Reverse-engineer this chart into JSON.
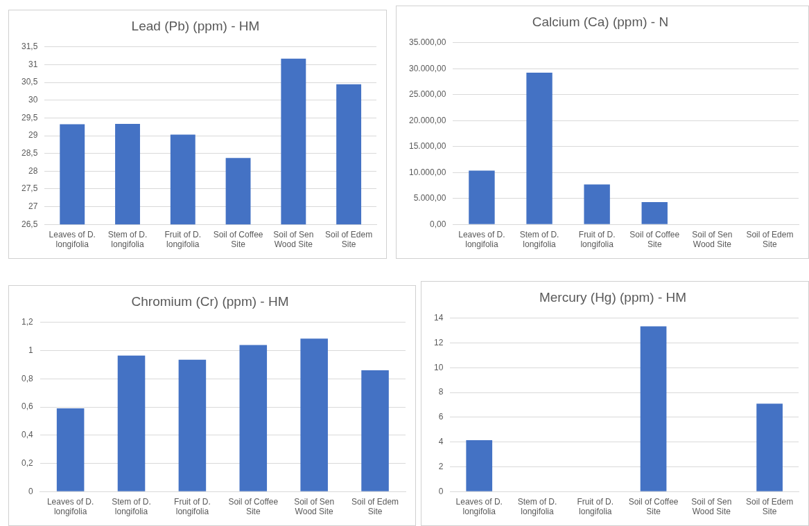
{
  "chart_data": [
    {
      "type": "bar",
      "title": "Lead (Pb) (ppm) - HM",
      "categories": [
        "Leaves of D. longifolia",
        "Stem of D. longifolia",
        "Fruit of D. longifolia",
        "Soil of Coffee Site",
        "Soil of Sen Wood Site",
        "Soil of Edem Site"
      ],
      "values": [
        29.32,
        29.33,
        29.03,
        28.37,
        31.17,
        30.45
      ],
      "color": "#4472c4",
      "ylim": [
        26.5,
        31.5
      ],
      "yticks": [
        {
          "value": 26.5,
          "label": "26,5"
        },
        27,
        {
          "value": 27.5,
          "label": "27,5"
        },
        28,
        {
          "value": 28.5,
          "label": "28,5"
        },
        29,
        {
          "value": 29.5,
          "label": "29,5"
        },
        30,
        {
          "value": 30.5,
          "label": "30,5"
        },
        31,
        {
          "value": 31.5,
          "label": "31,5"
        }
      ],
      "grid": "y"
    },
    {
      "type": "bar",
      "title": "Calcium (Ca) (ppm) - N",
      "categories": [
        "Leaves of D. longifolia",
        "Stem of D. longifolia",
        "Fruit of D. longifolia",
        "Soil of Coffee Site",
        "Soil of Sen Wood Site",
        "Soil of Edem Site"
      ],
      "values": [
        10350,
        29250,
        7700,
        4300,
        0,
        0
      ],
      "color": "#4472c4",
      "ylim": [
        0,
        35000
      ],
      "yticks": [
        {
          "value": 0,
          "label": "0,00"
        },
        {
          "value": 5000,
          "label": "5.000,00"
        },
        {
          "value": 10000,
          "label": "10.000,00"
        },
        {
          "value": 15000,
          "label": "15.000,00"
        },
        {
          "value": 20000,
          "label": "20.000,00"
        },
        {
          "value": 25000,
          "label": "25.000,00"
        },
        {
          "value": 30000,
          "label": "30.000,00"
        },
        {
          "value": 35000,
          "label": "35.000,00"
        }
      ],
      "grid": "y"
    },
    {
      "type": "bar",
      "title": "Chromium (Cr) (ppm) - HM",
      "categories": [
        "Leaves of D. longifolia",
        "Stem of D. longifolia",
        "Fruit of D. longifolia",
        "Soil of Coffee Site",
        "Soil of Sen Wood Site",
        "Soil of Edem Site"
      ],
      "values": [
        0.59,
        0.965,
        0.935,
        1.04,
        1.085,
        0.86
      ],
      "color": "#4472c4",
      "ylim": [
        0,
        1.2
      ],
      "yticks": [
        0,
        {
          "value": 0.2,
          "label": "0,2"
        },
        {
          "value": 0.4,
          "label": "0,4"
        },
        {
          "value": 0.6,
          "label": "0,6"
        },
        {
          "value": 0.8,
          "label": "0,8"
        },
        1,
        {
          "value": 1.2,
          "label": "1,2"
        }
      ],
      "grid": "y"
    },
    {
      "type": "bar",
      "title": "Mercury (Hg) (ppm) - HM",
      "categories": [
        "Leaves of D. longifolia",
        "Stem of D. longifolia",
        "Fruit of D. longifolia",
        "Soil of Coffee Site",
        "Soil of Sen Wood Site",
        "Soil of Edem Site"
      ],
      "values": [
        4.15,
        0,
        0,
        13.35,
        0,
        7.1
      ],
      "color": "#4472c4",
      "ylim": [
        0,
        14
      ],
      "yticks": [
        0,
        2,
        4,
        6,
        8,
        10,
        12,
        14
      ],
      "grid": "y"
    }
  ]
}
